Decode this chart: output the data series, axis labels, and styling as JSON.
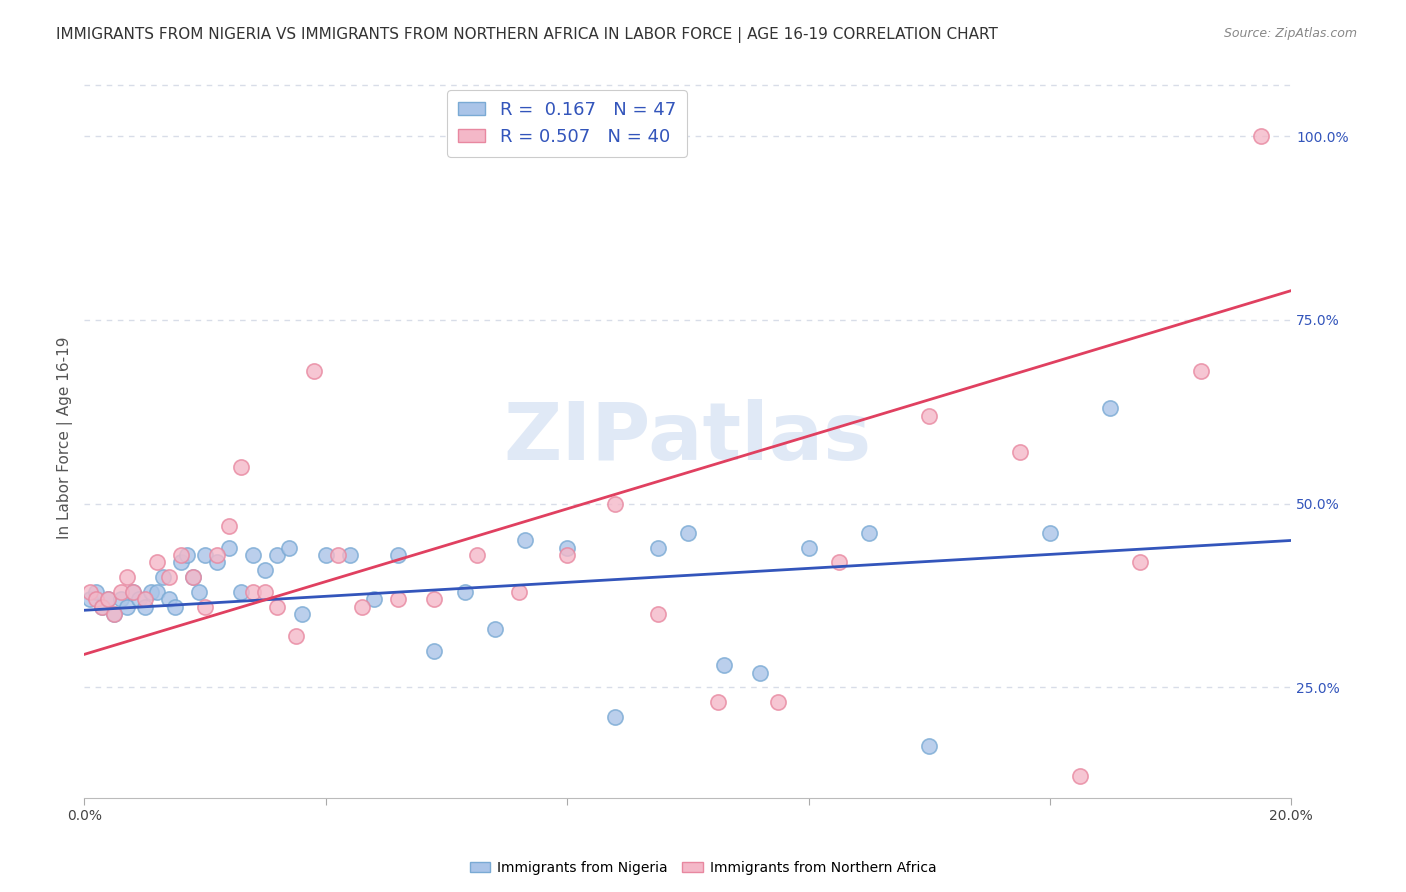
{
  "title": "IMMIGRANTS FROM NIGERIA VS IMMIGRANTS FROM NORTHERN AFRICA IN LABOR FORCE | AGE 16-19 CORRELATION CHART",
  "source": "Source: ZipAtlas.com",
  "ylabel": "In Labor Force | Age 16-19",
  "xlim": [
    0.0,
    0.2
  ],
  "ylim": [
    0.1,
    1.08
  ],
  "xticks": [
    0.0,
    0.04,
    0.08,
    0.12,
    0.16,
    0.2
  ],
  "xticklabels": [
    "0.0%",
    "",
    "",
    "",
    "",
    "20.0%"
  ],
  "yticks_right": [
    0.25,
    0.5,
    0.75,
    1.0
  ],
  "ytick_right_labels": [
    "25.0%",
    "50.0%",
    "75.0%",
    "100.0%"
  ],
  "nigeria_color": "#aac4e8",
  "nigeria_edge": "#7aaad4",
  "n_africa_color": "#f4b8c8",
  "n_africa_edge": "#e888a0",
  "blue_line_color": "#3355bb",
  "pink_line_color": "#e04060",
  "R_nigeria": 0.167,
  "N_nigeria": 47,
  "R_n_africa": 0.507,
  "N_n_africa": 40,
  "watermark": "ZIPatlas",
  "watermark_color": "#c8d8f0",
  "background_color": "#ffffff",
  "grid_color": "#d8dde8",
  "nigeria_x": [
    0.001,
    0.002,
    0.003,
    0.004,
    0.005,
    0.006,
    0.007,
    0.008,
    0.009,
    0.01,
    0.011,
    0.012,
    0.013,
    0.014,
    0.015,
    0.016,
    0.017,
    0.018,
    0.019,
    0.02,
    0.022,
    0.024,
    0.026,
    0.028,
    0.03,
    0.032,
    0.034,
    0.036,
    0.04,
    0.044,
    0.048,
    0.052,
    0.058,
    0.063,
    0.068,
    0.073,
    0.08,
    0.088,
    0.095,
    0.1,
    0.106,
    0.112,
    0.12,
    0.13,
    0.14,
    0.16,
    0.17
  ],
  "nigeria_y": [
    0.37,
    0.38,
    0.36,
    0.37,
    0.35,
    0.37,
    0.36,
    0.38,
    0.37,
    0.36,
    0.38,
    0.38,
    0.4,
    0.37,
    0.36,
    0.42,
    0.43,
    0.4,
    0.38,
    0.43,
    0.42,
    0.44,
    0.38,
    0.43,
    0.41,
    0.43,
    0.44,
    0.35,
    0.43,
    0.43,
    0.37,
    0.43,
    0.3,
    0.38,
    0.33,
    0.45,
    0.44,
    0.21,
    0.44,
    0.46,
    0.28,
    0.27,
    0.44,
    0.46,
    0.17,
    0.46,
    0.63
  ],
  "n_africa_x": [
    0.001,
    0.002,
    0.003,
    0.004,
    0.005,
    0.006,
    0.007,
    0.008,
    0.01,
    0.012,
    0.014,
    0.016,
    0.018,
    0.02,
    0.022,
    0.024,
    0.026,
    0.028,
    0.03,
    0.032,
    0.035,
    0.038,
    0.042,
    0.046,
    0.052,
    0.058,
    0.065,
    0.072,
    0.08,
    0.088,
    0.095,
    0.105,
    0.115,
    0.125,
    0.14,
    0.155,
    0.165,
    0.175,
    0.185,
    0.195
  ],
  "n_africa_y": [
    0.38,
    0.37,
    0.36,
    0.37,
    0.35,
    0.38,
    0.4,
    0.38,
    0.37,
    0.42,
    0.4,
    0.43,
    0.4,
    0.36,
    0.43,
    0.47,
    0.55,
    0.38,
    0.38,
    0.36,
    0.32,
    0.68,
    0.43,
    0.36,
    0.37,
    0.37,
    0.43,
    0.38,
    0.43,
    0.5,
    0.35,
    0.23,
    0.23,
    0.42,
    0.62,
    0.57,
    0.13,
    0.42,
    0.68,
    1.0
  ],
  "blue_line_y0": 0.355,
  "blue_line_y1": 0.45,
  "pink_line_y0": 0.295,
  "pink_line_y1": 0.79,
  "title_fontsize": 11,
  "axis_label_fontsize": 11,
  "tick_fontsize": 10,
  "legend_fontsize": 13
}
